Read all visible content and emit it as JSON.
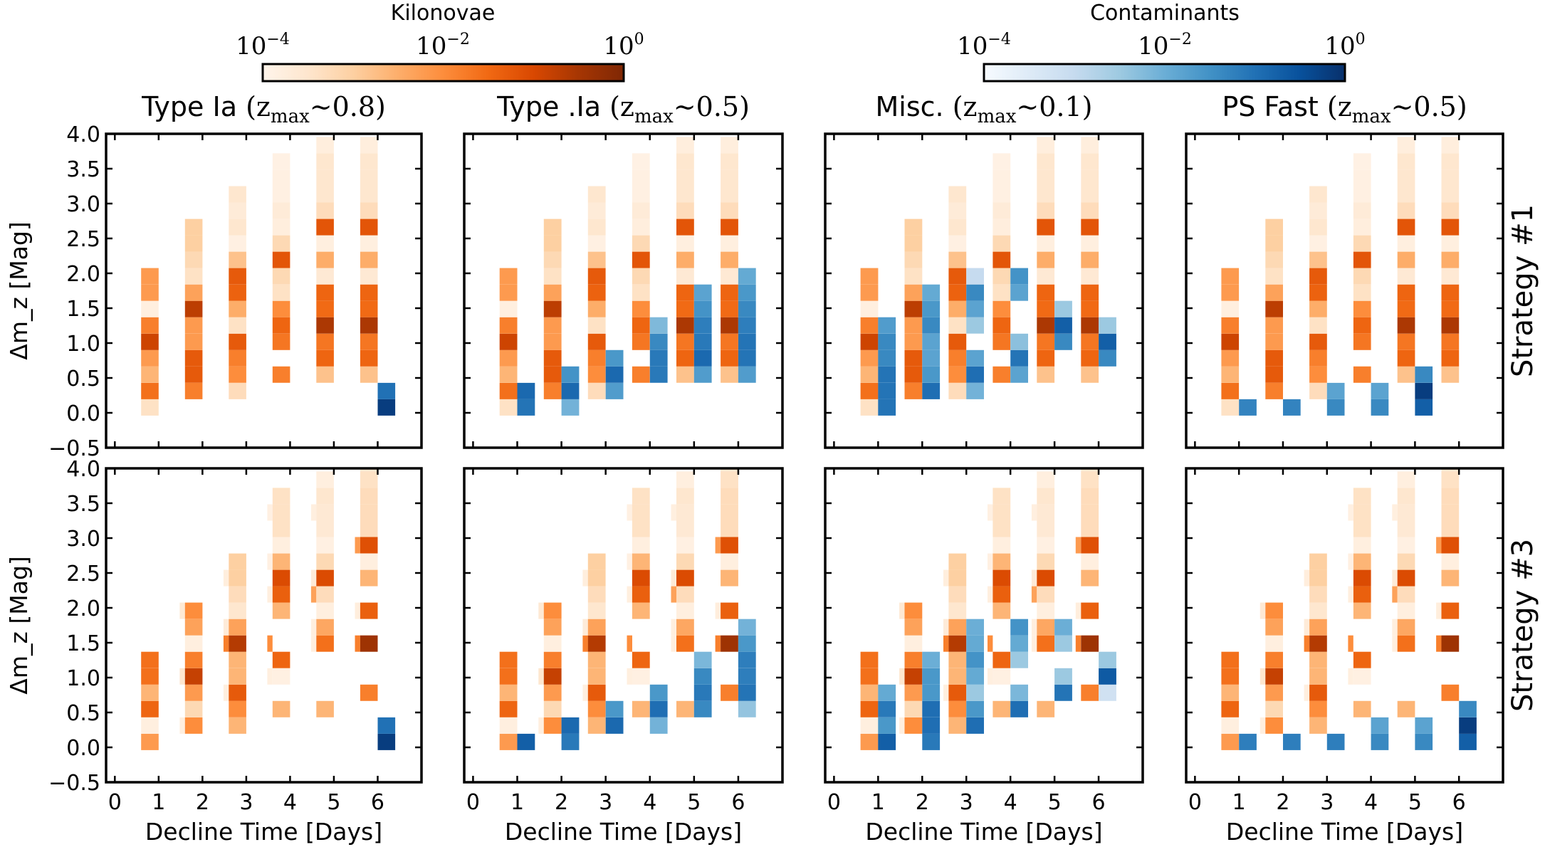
{
  "chart_data": {
    "type": "heatmap",
    "layout": "2 rows x 4 columns of 2D histograms",
    "xlabel": "Decline Time [Days]",
    "ylabel": "Δm_z [Mag]",
    "xlim": [
      -0.2,
      7.0
    ],
    "ylim": [
      -0.5,
      4.0
    ],
    "xticks": [
      "0",
      "1",
      "2",
      "3",
      "4",
      "5",
      "6"
    ],
    "yticks": [
      "−0.5",
      "0.0",
      "0.5",
      "1.0",
      "1.5",
      "2.0",
      "2.5",
      "3.0",
      "3.5",
      "4.0"
    ],
    "ybin": {
      "start": -0.04,
      "width": 0.235
    },
    "value_encoding": "level = position on log colour scale from 1e-4 (0) to 1e0 (1)",
    "colorbars": [
      {
        "name": "Kilonovae",
        "label": "Kilonovae",
        "colormap": "Oranges",
        "scale": "log",
        "range": [
          0.0001,
          1
        ],
        "ticks": [
          "10^-4",
          "10^-2",
          "10^0"
        ],
        "stops": [
          "#fff5eb",
          "#fee6ce",
          "#fdd0a2",
          "#fdae6b",
          "#fd8d3c",
          "#f16913",
          "#d94801",
          "#a63603",
          "#7f2704"
        ]
      },
      {
        "name": "Contaminants",
        "label": "Contaminants",
        "colormap": "Blues",
        "scale": "log",
        "range": [
          0.0001,
          1
        ],
        "ticks": [
          "10^-4",
          "10^-2",
          "10^0"
        ],
        "stops": [
          "#f7fbff",
          "#deebf7",
          "#c6dbef",
          "#9ecae1",
          "#6baed6",
          "#4292c6",
          "#2171b5",
          "#08519c",
          "#08306b"
        ]
      }
    ],
    "columns": [
      {
        "title_text": "Type Ia",
        "title_math": "(z",
        "title_sub": "max",
        "title_tail": "∼0.8)"
      },
      {
        "title_text": "Type .Ia",
        "title_math": "(z",
        "title_sub": "max",
        "title_tail": "∼0.5)"
      },
      {
        "title_text": "Misc.",
        "title_math": "(z",
        "title_sub": "max",
        "title_tail": "∼0.1)"
      },
      {
        "title_text": "PS Fast",
        "title_math": "(z",
        "title_sub": "max",
        "title_tail": "∼0.5)"
      }
    ],
    "rows": [
      {
        "label": "Strategy #1"
      },
      {
        "label": "Strategy #3"
      }
    ],
    "kilonova_s1": [
      {
        "day": 1,
        "k0": 0,
        "levels": [
          0.15,
          0.6,
          0.35,
          0.45,
          0.78,
          0.55,
          0.05,
          0.45,
          0.45
        ]
      },
      {
        "day": 2,
        "k0": 1,
        "levels": [
          0.55,
          0.68,
          0.68,
          0.45,
          0.45,
          0.82,
          0.42,
          0.15,
          0.2,
          0.25,
          0.25
        ]
      },
      {
        "day": 3,
        "k0": 1,
        "levels": [
          0.18,
          0.5,
          0.55,
          0.68,
          0.15,
          0.38,
          0.65,
          0.68,
          0.3,
          0.04,
          0.12,
          0.08,
          0.12
        ]
      },
      {
        "day": 4,
        "k0": 2,
        "levels": [
          0.55,
          null,
          0.58,
          0.64,
          0.5,
          0.15,
          0.2,
          0.7,
          0.2,
          0.06,
          0.08,
          0.04,
          0.04,
          0.03
        ]
      },
      {
        "day": 5,
        "k0": 2,
        "levels": [
          0.3,
          0.64,
          0.58,
          0.86,
          0.62,
          0.64,
          0.1,
          0.38,
          0.05,
          0.7,
          0.18,
          0.12,
          0.12,
          0.12,
          0.06
        ]
      }
    ],
    "kilonova_s3": [
      {
        "day": 1,
        "k0": 0,
        "levels": [
          0.45,
          0.05,
          0.64,
          0.35,
          0.6,
          0.6
        ]
      },
      {
        "day": 2,
        "k0": 1,
        "levels": [
          0.5,
          0.2,
          0.45,
          0.8,
          0.55,
          0.05,
          0.42,
          0.5
        ]
      },
      {
        "day": 3,
        "k0": 1,
        "levels": [
          0.35,
          0.5,
          0.68,
          0.35,
          0.35,
          0.84,
          0.42,
          0.12,
          0.18,
          0.25,
          0.25
        ]
      },
      {
        "day": 4,
        "k0": 2,
        "levels": [
          0.35,
          null,
          0.04,
          0.64,
          null,
          null,
          0.35,
          0.66,
          0.74,
          0.35,
          0.05,
          0.15,
          0.15,
          0.15
        ]
      },
      {
        "day": 5,
        "k0": 2,
        "levels": [
          0.35,
          null,
          null,
          null,
          0.6,
          0.4,
          0.05,
          0.18,
          0.74,
          0.2,
          0.04,
          0.1,
          0.1,
          0.12,
          0.05
        ]
      },
      {
        "day": 6,
        "k0": 3,
        "levels": [
          0.55,
          null,
          null,
          0.9,
          null,
          0.66,
          null,
          0.35,
          0.05,
          0.72,
          0.18,
          0.18,
          0.18,
          0.15,
          0.12
        ]
      }
    ],
    "kilonova_s3_shoulders": [
      {
        "day": 2,
        "k0": 1,
        "levels": [
          0.05,
          null,
          null,
          0.12,
          null,
          null,
          null,
          0.1
        ]
      },
      {
        "day": 3,
        "k0": 3,
        "levels": [
          0.05,
          null,
          null,
          0.55,
          0.08,
          null,
          null,
          0.06
        ]
      },
      {
        "day": 4,
        "k0": 4,
        "levels": [
          0.05,
          null,
          0.5,
          null,
          null,
          0.05,
          null,
          0.04,
          null,
          null,
          0.04
        ]
      },
      {
        "day": 5,
        "k0": 6,
        "levels": [
          0.05,
          0.05,
          null,
          0.42,
          0.08,
          null,
          null,
          null,
          0.05,
          null
        ]
      },
      {
        "day": 6,
        "k0": 6,
        "levels": [
          0.55,
          null,
          0.06,
          null,
          null,
          null,
          0.45,
          null,
          null,
          null,
          null,
          null,
          0.05
        ]
      }
    ],
    "panels": [
      {
        "row": 0,
        "col": 0,
        "kilonova": "kilonova_s1_ia",
        "contaminant": [
          {
            "day": 6,
            "k0": 0,
            "levels": [
              0.95,
              0.75
            ]
          }
        ]
      },
      {
        "row": 0,
        "col": 1,
        "contaminant": [
          {
            "day": 1,
            "k0": 0,
            "levels": [
              0.74,
              0.78
            ]
          },
          {
            "day": 2,
            "k0": 0,
            "levels": [
              0.48,
              0.78,
              0.62
            ]
          },
          {
            "day": 3,
            "k0": 1,
            "levels": [
              0.58,
              0.78,
              0.6
            ]
          },
          {
            "day": 4,
            "k0": 2,
            "levels": [
              0.72,
              0.72,
              0.66,
              0.45
            ]
          },
          {
            "day": 5,
            "k0": 2,
            "levels": [
              0.58,
              0.78,
              0.72,
              0.7,
              0.62,
              0.55
            ]
          }
        ]
      },
      {
        "row": 0,
        "col": 2,
        "contaminant": [
          {
            "day": 1,
            "k0": 0,
            "levels": [
              0.74,
              0.74,
              0.74,
              0.66,
              0.66,
              0.58
            ]
          },
          {
            "day": 2,
            "k0": 1,
            "levels": [
              0.76,
              0.6,
              0.55,
              0.55,
              0.66,
              0.6,
              0.52
            ]
          },
          {
            "day": 3,
            "k0": 1,
            "levels": [
              0.48,
              0.76,
              0.55,
              null,
              0.38,
              0.55,
              0.66,
              0.25
            ]
          },
          {
            "day": 4,
            "k0": 2,
            "levels": [
              0.55,
              0.74,
              0.42,
              null,
              null,
              0.55,
              0.62
            ]
          },
          {
            "day": 5,
            "k0": 4,
            "levels": [
              0.66,
              0.82,
              0.38
            ]
          }
        ]
      },
      {
        "row": 0,
        "col": 3,
        "contaminant": [
          {
            "day": 1,
            "k0": 0,
            "levels": [
              0.68
            ]
          },
          {
            "day": 2,
            "k0": 0,
            "levels": [
              0.68
            ]
          },
          {
            "day": 3,
            "k0": 0,
            "levels": [
              0.66,
              0.55
            ]
          },
          {
            "day": 4,
            "k0": 0,
            "levels": [
              0.66,
              0.55
            ]
          },
          {
            "day": 5,
            "k0": 0,
            "levels": [
              0.82,
              0.95,
              0.66
            ]
          }
        ]
      },
      {
        "row": 1,
        "col": 0,
        "contaminant": [
          {
            "day": 6,
            "k0": 0,
            "levels": [
              0.95,
              0.75
            ]
          }
        ]
      },
      {
        "row": 1,
        "col": 1,
        "contaminant": [
          {
            "day": 1,
            "k0": 0,
            "levels": [
              0.82
            ]
          },
          {
            "day": 2,
            "k0": 0,
            "levels": [
              0.72,
              0.78
            ]
          },
          {
            "day": 3,
            "k0": 1,
            "levels": [
              0.78,
              0.6
            ]
          },
          {
            "day": 4,
            "k0": 1,
            "levels": [
              0.48,
              0.76,
              0.6
            ]
          },
          {
            "day": 5,
            "k0": 2,
            "levels": [
              0.66,
              0.72,
              0.66,
              0.46
            ]
          },
          {
            "day": 6,
            "k0": 2,
            "levels": [
              0.4,
              0.74,
              0.7,
              0.7,
              0.6,
              0.48
            ]
          }
        ]
      },
      {
        "row": 1,
        "col": 2,
        "contaminant": [
          {
            "day": 1,
            "k0": 0,
            "levels": [
              0.82,
              0.6,
              0.72,
              0.52
            ]
          },
          {
            "day": 2,
            "k0": 0,
            "levels": [
              0.72,
              0.76,
              0.76,
              0.6,
              0.6,
              0.5
            ]
          },
          {
            "day": 3,
            "k0": 1,
            "levels": [
              0.76,
              0.6,
              0.38,
              0.52,
              0.62,
              0.52,
              0.5
            ]
          },
          {
            "day": 4,
            "k0": 2,
            "levels": [
              0.76,
              0.46,
              null,
              0.38,
              0.52,
              0.62
            ]
          },
          {
            "day": 5,
            "k0": 3,
            "levels": [
              0.74,
              0.38,
              null,
              0.38,
              0.5
            ]
          },
          {
            "day": 6,
            "k0": 3,
            "levels": [
              0.2,
              0.84,
              0.38
            ]
          }
        ]
      },
      {
        "row": 1,
        "col": 3,
        "contaminant": [
          {
            "day": 1,
            "k0": 0,
            "levels": [
              0.7
            ]
          },
          {
            "day": 2,
            "k0": 0,
            "levels": [
              0.7
            ]
          },
          {
            "day": 3,
            "k0": 0,
            "levels": [
              0.7
            ]
          },
          {
            "day": 4,
            "k0": 0,
            "levels": [
              0.66,
              0.55
            ]
          },
          {
            "day": 5,
            "k0": 0,
            "levels": [
              0.66,
              0.55
            ]
          },
          {
            "day": 6,
            "k0": 0,
            "levels": [
              0.82,
              0.95,
              0.66
            ]
          }
        ]
      }
    ],
    "contaminant_day6_s1_misc": {
      "day": 6,
      "k0": 3,
      "levels": [
        0.66,
        0.82,
        0.38
      ]
    }
  }
}
